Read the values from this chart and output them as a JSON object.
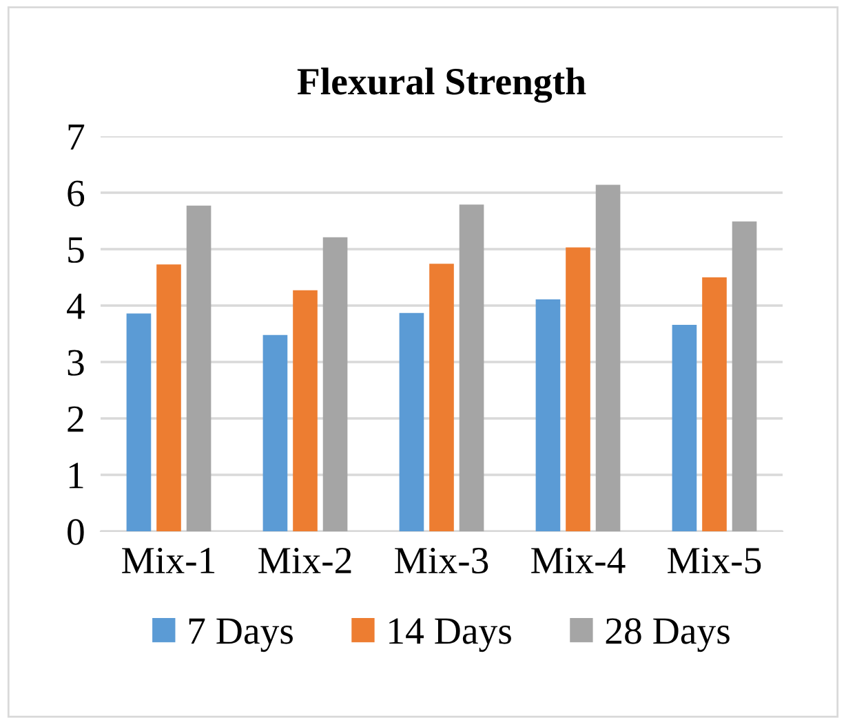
{
  "chart_data": {
    "type": "bar",
    "title": "Flexural Strength",
    "categories": [
      "Mix-1",
      "Mix-2",
      "Mix-3",
      "Mix-4",
      "Mix-5"
    ],
    "series": [
      {
        "name": "7 Days",
        "color": "#5b9bd5",
        "values": [
          3.86,
          3.48,
          3.87,
          4.11,
          3.66
        ]
      },
      {
        "name": "14 Days",
        "color": "#ed7d31",
        "values": [
          4.73,
          4.27,
          4.74,
          5.03,
          4.5
        ]
      },
      {
        "name": "28 Days",
        "color": "#a5a5a5",
        "values": [
          5.77,
          5.21,
          5.79,
          6.14,
          5.49
        ]
      }
    ],
    "ylim": [
      0,
      7
    ],
    "yticks": [
      0,
      1,
      2,
      3,
      4,
      5,
      6,
      7
    ],
    "grid": "y",
    "legend": "bottom"
  }
}
